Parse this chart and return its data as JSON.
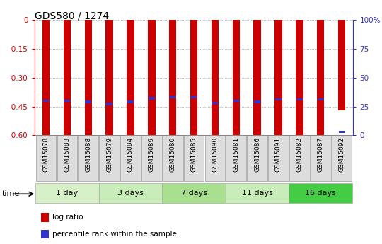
{
  "title": "GDS580 / 1274",
  "samples": [
    "GSM15078",
    "GSM15083",
    "GSM15088",
    "GSM15079",
    "GSM15084",
    "GSM15089",
    "GSM15080",
    "GSM15085",
    "GSM15090",
    "GSM15081",
    "GSM15086",
    "GSM15091",
    "GSM15082",
    "GSM15087",
    "GSM15092"
  ],
  "log_ratios": [
    -0.6,
    -0.6,
    -0.6,
    -0.6,
    -0.6,
    -0.6,
    -0.6,
    -0.6,
    -0.6,
    -0.6,
    -0.6,
    -0.6,
    -0.6,
    -0.6,
    -0.47
  ],
  "percentile_ranks": [
    30,
    30,
    29,
    27,
    29,
    32,
    33,
    33,
    28,
    30,
    29,
    31,
    31,
    31,
    3
  ],
  "bar_color": "#cc0000",
  "pct_color": "#3333cc",
  "ylim_min": -0.6,
  "ylim_max": 0.0,
  "yticks": [
    0.0,
    -0.15,
    -0.3,
    -0.45,
    -0.6
  ],
  "ytick_labels": [
    "0",
    "-0.15",
    "-0.30",
    "-0.45",
    "-0.60"
  ],
  "right_yticks": [
    0,
    25,
    50,
    75,
    100
  ],
  "right_ytick_labels": [
    "0",
    "25",
    "50",
    "75",
    "100%"
  ],
  "groups": [
    {
      "label": "1 day",
      "start": 0,
      "end": 3
    },
    {
      "label": "3 days",
      "start": 3,
      "end": 6
    },
    {
      "label": "7 days",
      "start": 6,
      "end": 9
    },
    {
      "label": "11 days",
      "start": 9,
      "end": 12
    },
    {
      "label": "16 days",
      "start": 12,
      "end": 15
    }
  ],
  "group_colors": [
    "#d8f0c8",
    "#c8edb8",
    "#a8e090",
    "#c8edb8",
    "#44cc44"
  ],
  "bar_width": 0.35,
  "grid_color": "#777777",
  "title_fontsize": 10,
  "tick_fontsize": 7.5,
  "sample_fontsize": 6.5,
  "legend_fontsize": 7.5,
  "group_fontsize": 8
}
